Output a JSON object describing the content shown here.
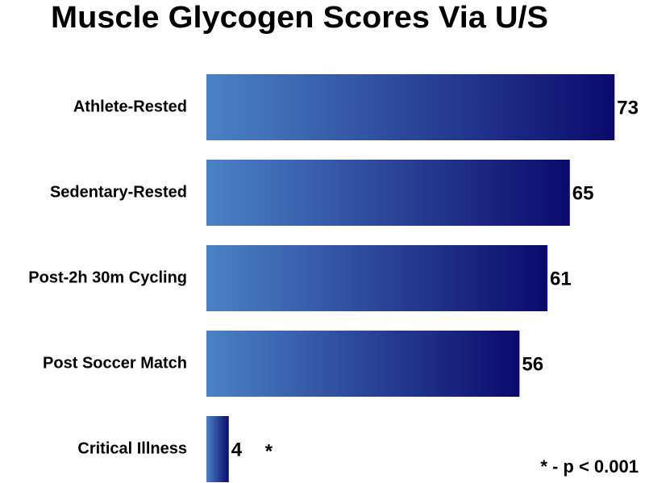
{
  "chart_data": {
    "type": "bar",
    "orientation": "horizontal",
    "title": "Muscle Glycogen Scores Via U/S",
    "categories": [
      "Athlete-Rested",
      "Sedentary-Rested",
      "Post-2h 30m Cycling",
      "Post Soccer Match",
      "Critical Illness"
    ],
    "values": [
      73,
      65,
      61,
      56,
      4
    ],
    "color_start": "#4b82c6",
    "color_end": "#0b0a6c",
    "xlim": [
      0,
      77
    ],
    "significance_marker": {
      "category_index": 4,
      "text": "*"
    },
    "footnote": "* - p < 0.001"
  }
}
